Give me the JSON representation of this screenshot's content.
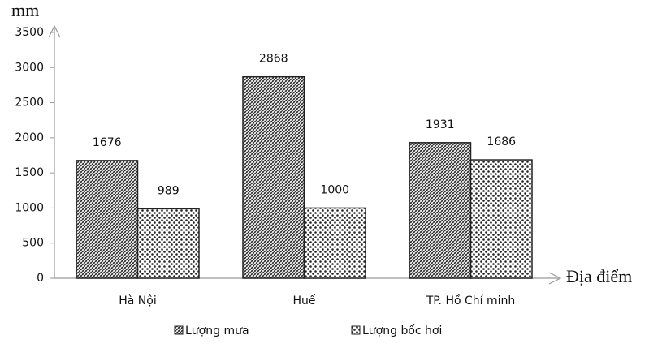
{
  "chart_data": {
    "type": "bar",
    "y_axis_label": "mm",
    "x_axis_label": "Địa điểm",
    "categories": [
      "Hà Nội",
      "Huế",
      "TP. Hồ Chí minh"
    ],
    "series": [
      {
        "name": "Lượng mưa",
        "color": "#222222",
        "pattern": "crosshatch",
        "values": [
          1676,
          2868,
          1931
        ]
      },
      {
        "name": "Lượng bốc hơi",
        "color": "#222222",
        "pattern": "dots",
        "values": [
          989,
          1000,
          1686
        ]
      }
    ],
    "ylim": [
      0,
      3500
    ],
    "yticks": [
      0,
      500,
      1000,
      1500,
      2000,
      2500,
      3000,
      3500
    ],
    "grid": false,
    "legend": "bottom"
  }
}
